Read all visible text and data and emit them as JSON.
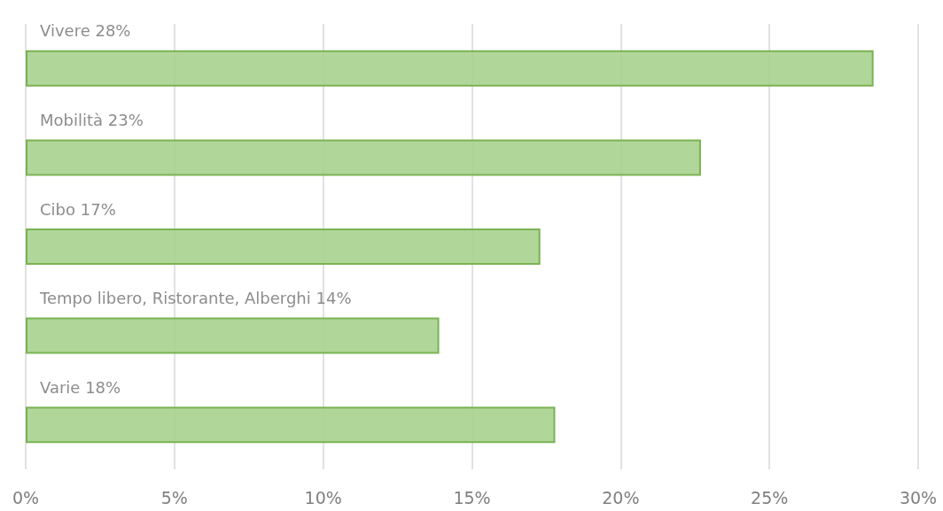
{
  "chart_data": {
    "type": "bar",
    "orientation": "horizontal",
    "categories": [
      "Vivere 28%",
      "Mobilità 23%",
      "Cibo 17%",
      "Tempo libero, Ristorante, Alberghi 14%",
      "Varie 18%"
    ],
    "values": [
      28.5,
      22.7,
      17.3,
      13.9,
      17.8
    ],
    "color": "#a9d18e",
    "xlim": [
      0,
      30
    ],
    "xticks": [
      {
        "value": 0,
        "label": "0%"
      },
      {
        "value": 5,
        "label": "5%"
      },
      {
        "value": 10,
        "label": "10%"
      },
      {
        "value": 15,
        "label": "15%"
      },
      {
        "value": 20,
        "label": "20%"
      },
      {
        "value": 25,
        "label": "25%"
      },
      {
        "value": 30,
        "label": "30%"
      }
    ],
    "grid": "x"
  }
}
